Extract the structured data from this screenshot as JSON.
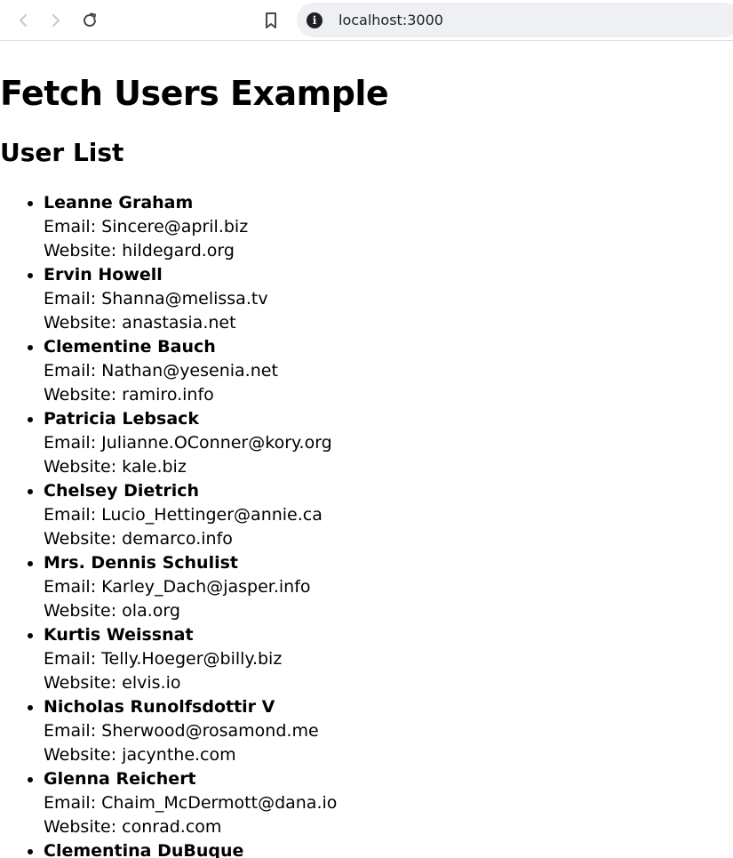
{
  "browser": {
    "url": "localhost:3000",
    "icons": {
      "back": "arrow-left-icon",
      "forward": "arrow-right-icon",
      "reload": "reload-icon",
      "bookmark": "bookmark-icon",
      "site_info": "info-icon"
    }
  },
  "page": {
    "title": "Fetch Users Example",
    "section_title": "User List",
    "users": [
      {
        "name": "Leanne Graham",
        "email": "Email: Sincere@april.biz",
        "website": "Website: hildegard.org"
      },
      {
        "name": "Ervin Howell",
        "email": "Email: Shanna@melissa.tv",
        "website": "Website: anastasia.net"
      },
      {
        "name": "Clementine Bauch",
        "email": "Email: Nathan@yesenia.net",
        "website": "Website: ramiro.info"
      },
      {
        "name": "Patricia Lebsack",
        "email": "Email: Julianne.OConner@kory.org",
        "website": "Website: kale.biz"
      },
      {
        "name": "Chelsey Dietrich",
        "email": "Email: Lucio_Hettinger@annie.ca",
        "website": "Website: demarco.info"
      },
      {
        "name": "Mrs. Dennis Schulist",
        "email": "Email: Karley_Dach@jasper.info",
        "website": "Website: ola.org"
      },
      {
        "name": "Kurtis Weissnat",
        "email": "Email: Telly.Hoeger@billy.biz",
        "website": "Website: elvis.io"
      },
      {
        "name": "Nicholas Runolfsdottir V",
        "email": "Email: Sherwood@rosamond.me",
        "website": "Website: jacynthe.com"
      },
      {
        "name": "Glenna Reichert",
        "email": "Email: Chaim_McDermott@dana.io",
        "website": "Website: conrad.com"
      },
      {
        "name": "Clementina DuBuque",
        "email": "",
        "website": ""
      }
    ]
  }
}
